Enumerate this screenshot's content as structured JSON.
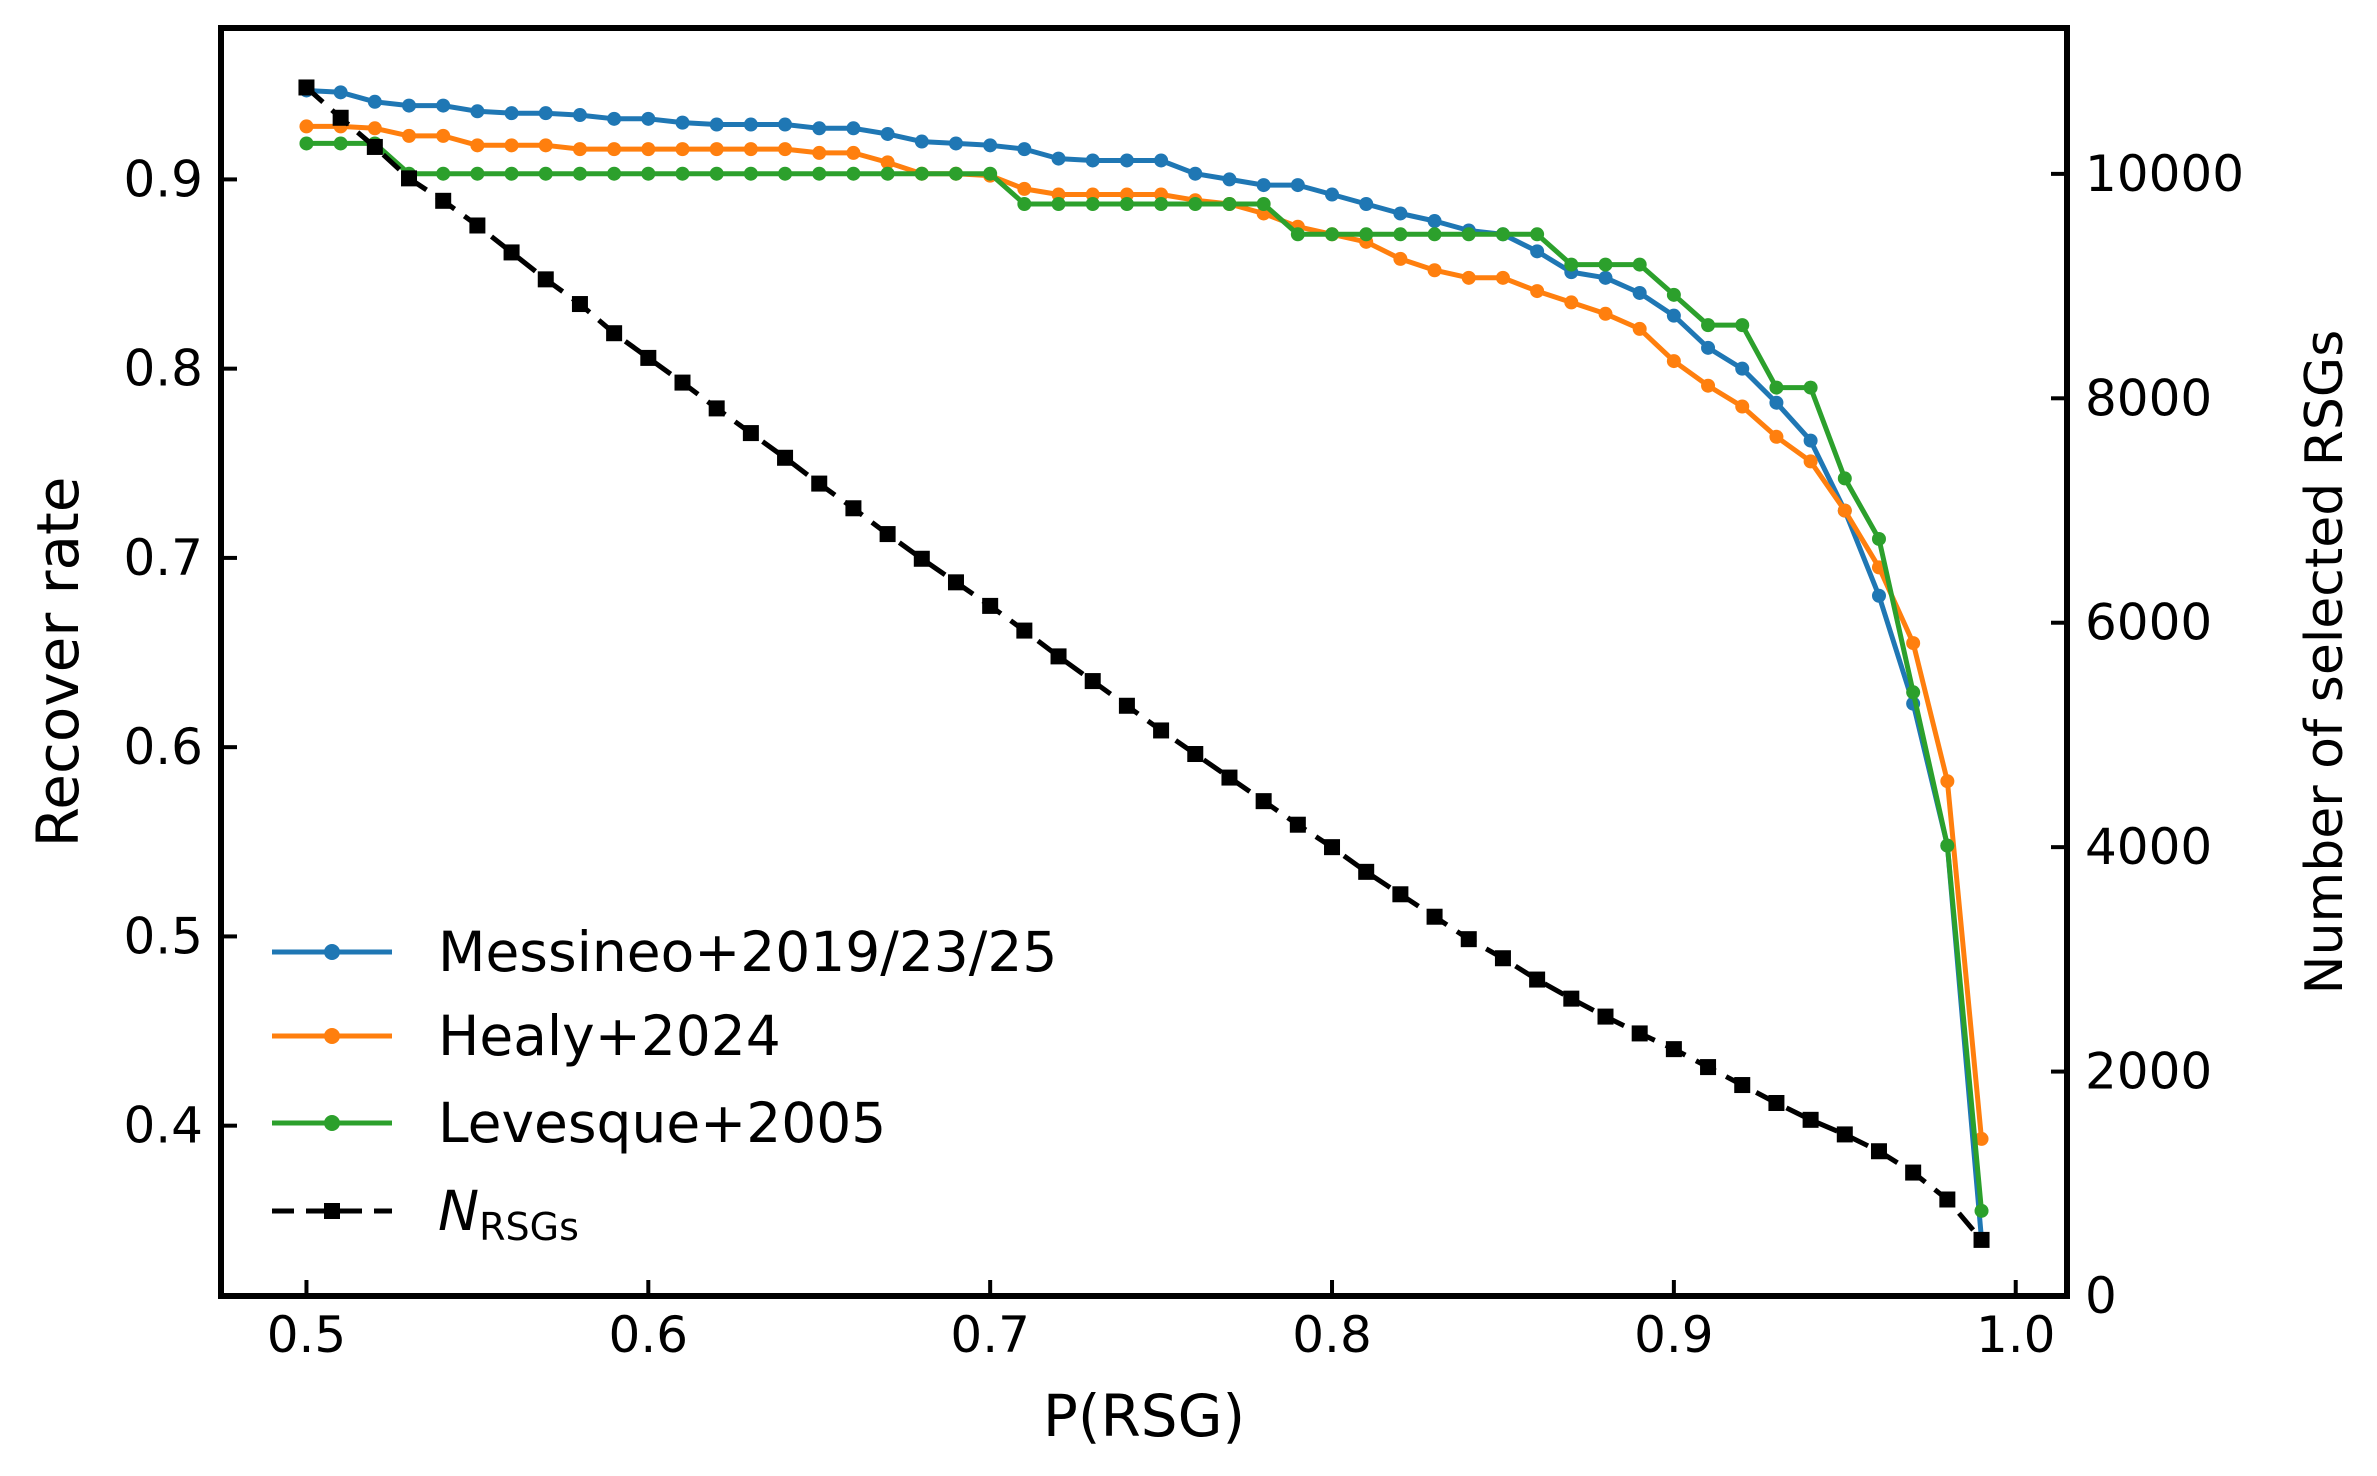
{
  "chart_data": {
    "type": "line",
    "xlabel": "P(RSG)",
    "ylabel": "Recover rate",
    "y2label": "Number of selected RSGs",
    "xlim": [
      0.475,
      1.015
    ],
    "ylim": [
      0.31,
      0.98
    ],
    "y2lim": [
      0,
      11300
    ],
    "xticks": [
      "0.5",
      "0.6",
      "0.7",
      "0.8",
      "0.9",
      "1.0"
    ],
    "yticks": [
      "0.4",
      "0.5",
      "0.6",
      "0.7",
      "0.8",
      "0.9"
    ],
    "y2ticks": [
      "0",
      "2000",
      "4000",
      "6000",
      "8000",
      "10000"
    ],
    "legend_position": "lower-left",
    "x": [
      0.5,
      0.51,
      0.52,
      0.53,
      0.54,
      0.55,
      0.56,
      0.57,
      0.58,
      0.59,
      0.6,
      0.61,
      0.62,
      0.63,
      0.64,
      0.65,
      0.66,
      0.67,
      0.68,
      0.69,
      0.7,
      0.71,
      0.72,
      0.73,
      0.74,
      0.75,
      0.76,
      0.77,
      0.78,
      0.79,
      0.8,
      0.81,
      0.82,
      0.83,
      0.84,
      0.85,
      0.86,
      0.87,
      0.88,
      0.89,
      0.9,
      0.91,
      0.92,
      0.93,
      0.94,
      0.95,
      0.96,
      0.97,
      0.98,
      0.99
    ],
    "series": [
      {
        "name": "Messineo+2019/23/25",
        "color": "#1f77b4",
        "axis": "left",
        "marker": "circle",
        "linestyle": "solid",
        "values": [
          0.947,
          0.946,
          0.941,
          0.939,
          0.939,
          0.936,
          0.935,
          0.935,
          0.934,
          0.932,
          0.932,
          0.93,
          0.929,
          0.929,
          0.929,
          0.927,
          0.927,
          0.924,
          0.92,
          0.919,
          0.918,
          0.916,
          0.911,
          0.91,
          0.91,
          0.91,
          0.903,
          0.9,
          0.897,
          0.897,
          0.892,
          0.887,
          0.882,
          0.878,
          0.873,
          0.871,
          0.862,
          0.851,
          0.848,
          0.84,
          0.828,
          0.811,
          0.8,
          0.782,
          0.762,
          0.725,
          0.68,
          0.623,
          0.548,
          0.34
        ]
      },
      {
        "name": "Healy+2024",
        "color": "#ff7f0e",
        "axis": "left",
        "marker": "circle",
        "linestyle": "solid",
        "values": [
          0.928,
          0.928,
          0.927,
          0.923,
          0.923,
          0.918,
          0.918,
          0.918,
          0.916,
          0.916,
          0.916,
          0.916,
          0.916,
          0.916,
          0.916,
          0.914,
          0.914,
          0.909,
          0.903,
          0.903,
          0.902,
          0.895,
          0.892,
          0.892,
          0.892,
          0.892,
          0.889,
          0.887,
          0.882,
          0.875,
          0.871,
          0.867,
          0.858,
          0.852,
          0.848,
          0.848,
          0.841,
          0.835,
          0.829,
          0.821,
          0.804,
          0.791,
          0.78,
          0.764,
          0.751,
          0.725,
          0.695,
          0.655,
          0.582,
          0.393
        ]
      },
      {
        "name": "Levesque+2005",
        "color": "#2ca02c",
        "axis": "left",
        "marker": "circle",
        "linestyle": "solid",
        "values": [
          0.919,
          0.919,
          0.919,
          0.903,
          0.903,
          0.903,
          0.903,
          0.903,
          0.903,
          0.903,
          0.903,
          0.903,
          0.903,
          0.903,
          0.903,
          0.903,
          0.903,
          0.903,
          0.903,
          0.903,
          0.903,
          0.887,
          0.887,
          0.887,
          0.887,
          0.887,
          0.887,
          0.887,
          0.887,
          0.871,
          0.871,
          0.871,
          0.871,
          0.871,
          0.871,
          0.871,
          0.871,
          0.855,
          0.855,
          0.855,
          0.839,
          0.823,
          0.823,
          0.79,
          0.79,
          0.742,
          0.71,
          0.629,
          0.548,
          0.355
        ]
      },
      {
        "name": "N",
        "subscript": "RSGs",
        "color": "#000000",
        "axis": "right",
        "marker": "square",
        "linestyle": "dashed",
        "values": [
          10770,
          10500,
          10240,
          9960,
          9760,
          9540,
          9300,
          9060,
          8840,
          8580,
          8360,
          8140,
          7910,
          7690,
          7470,
          7240,
          7020,
          6790,
          6570,
          6360,
          6150,
          5930,
          5700,
          5480,
          5260,
          5040,
          4830,
          4620,
          4410,
          4200,
          4000,
          3780,
          3580,
          3380,
          3180,
          3010,
          2820,
          2650,
          2490,
          2340,
          2200,
          2040,
          1880,
          1720,
          1570,
          1440,
          1290,
          1100,
          860,
          500
        ]
      }
    ]
  }
}
